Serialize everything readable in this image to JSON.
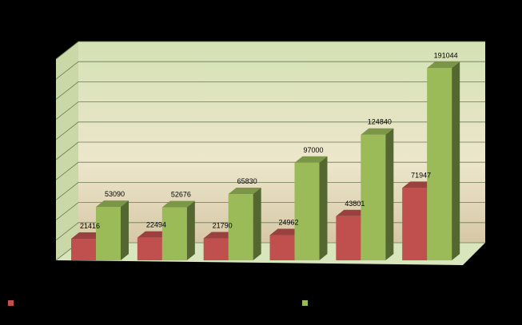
{
  "chart_data": {
    "type": "bar",
    "categories": [
      "",
      "",
      "",
      "",
      "",
      ""
    ],
    "series": [
      {
        "name": "",
        "values": [
          21416,
          22494,
          21790,
          24962,
          43801,
          71947
        ],
        "color": "#c0504d"
      },
      {
        "name": "",
        "values": [
          53090,
          52676,
          65830,
          97000,
          124840,
          191044
        ],
        "color": "#9bbb59"
      }
    ],
    "title": "",
    "xlabel": "",
    "ylabel": "",
    "ylim": [
      0,
      200000
    ],
    "grid": true,
    "style": "3d-clustered-column",
    "legend_position": "bottom"
  }
}
